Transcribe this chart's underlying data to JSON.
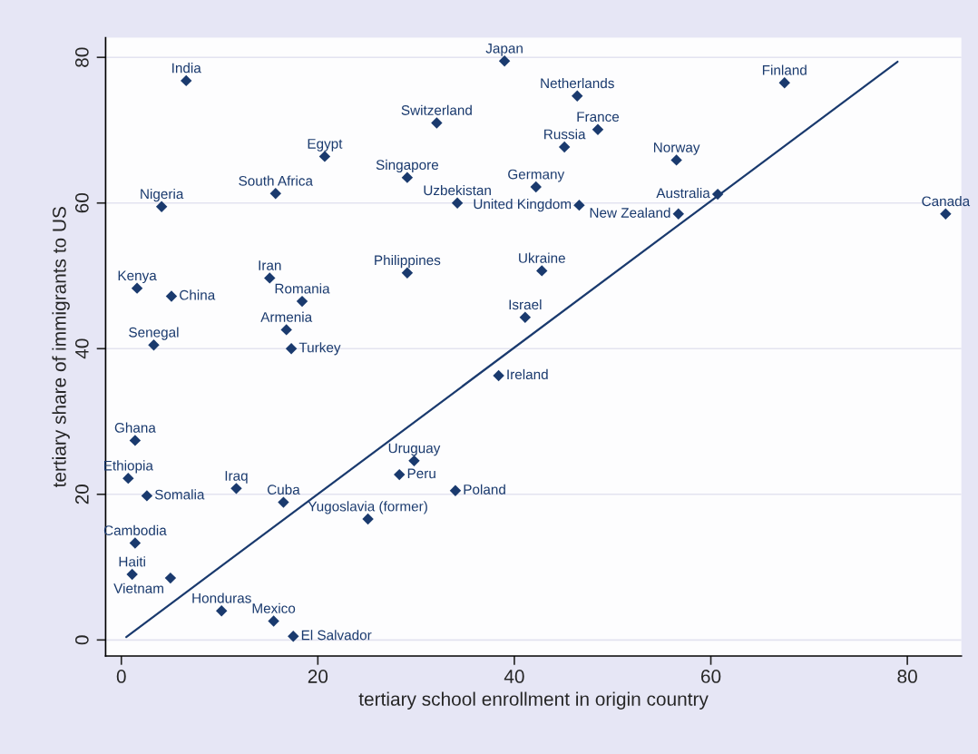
{
  "chart_data": {
    "type": "scatter",
    "xlabel": "tertiary school enrollment in origin country",
    "ylabel": "tertiary share of immigrants to US",
    "xlim": [
      -1.6,
      85.5
    ],
    "ylim": [
      -2.2,
      82.7
    ],
    "xticks": [
      0,
      20,
      40,
      60,
      80
    ],
    "yticks": [
      0,
      20,
      40,
      60,
      80
    ],
    "grid": "y",
    "marker": "diamond",
    "series": [
      {
        "color": "#1a3a6e",
        "x": [
          6.6,
          32.1,
          20.7,
          29.1,
          15.7,
          34.2,
          4.1,
          29.1,
          1.6,
          15.1,
          5.1,
          18.4,
          16.8,
          17.3,
          3.3,
          39.0,
          67.5,
          46.4,
          48.5,
          45.1,
          56.5,
          42.2,
          46.6,
          60.7,
          56.7,
          83.9,
          42.8,
          41.1,
          38.4,
          1.4,
          0.7,
          2.6,
          11.7,
          16.5,
          29.8,
          28.3,
          34.0,
          25.1,
          1.4,
          1.1,
          5.0,
          10.2,
          15.5,
          17.5
        ],
        "values": [
          76.8,
          71.0,
          66.4,
          63.5,
          61.3,
          60.0,
          59.5,
          50.4,
          48.3,
          49.7,
          47.2,
          46.5,
          42.6,
          40.0,
          40.5,
          79.5,
          76.5,
          74.7,
          70.1,
          67.7,
          65.9,
          62.2,
          59.7,
          61.2,
          58.5,
          58.5,
          50.7,
          44.3,
          36.3,
          27.4,
          22.2,
          19.8,
          20.8,
          18.9,
          24.6,
          22.7,
          20.5,
          16.6,
          13.3,
          9.0,
          8.5,
          4.0,
          2.6,
          0.5
        ]
      },
      {
        "type": "line",
        "color": "#1a3a6e",
        "marker": "none",
        "x": [
          0.5,
          79.0
        ],
        "values": [
          0.4,
          79.4
        ]
      }
    ],
    "annotations": [
      {
        "text": "India",
        "x": 6.6,
        "y": 76.8
      },
      {
        "text": "Switzerland",
        "x": 32.1,
        "y": 71.0
      },
      {
        "text": "Egypt",
        "x": 20.7,
        "y": 66.4
      },
      {
        "text": "Singapore",
        "x": 29.1,
        "y": 63.5
      },
      {
        "text": "South Africa",
        "x": 15.7,
        "y": 61.3
      },
      {
        "text": "Uzbekistan",
        "x": 34.2,
        "y": 60.0
      },
      {
        "text": "Nigeria",
        "x": 4.1,
        "y": 59.5
      },
      {
        "text": "Philippines",
        "x": 29.1,
        "y": 50.4
      },
      {
        "text": "Kenya",
        "x": 1.6,
        "y": 48.3
      },
      {
        "text": "Iran",
        "x": 15.1,
        "y": 49.7
      },
      {
        "text": "China",
        "x": 5.1,
        "y": 47.2
      },
      {
        "text": "Romania",
        "x": 18.4,
        "y": 46.5
      },
      {
        "text": "Armenia",
        "x": 16.8,
        "y": 42.6
      },
      {
        "text": "Turkey",
        "x": 17.3,
        "y": 40.0
      },
      {
        "text": "Senegal",
        "x": 3.3,
        "y": 40.5
      },
      {
        "text": "Japan",
        "x": 39.0,
        "y": 79.5
      },
      {
        "text": "Finland",
        "x": 67.5,
        "y": 76.5
      },
      {
        "text": "Netherlands",
        "x": 46.4,
        "y": 74.7
      },
      {
        "text": "France",
        "x": 48.5,
        "y": 70.1
      },
      {
        "text": "Russia",
        "x": 45.1,
        "y": 67.7
      },
      {
        "text": "Norway",
        "x": 56.5,
        "y": 65.9
      },
      {
        "text": "Germany",
        "x": 42.2,
        "y": 62.2
      },
      {
        "text": "United Kingdom",
        "x": 46.6,
        "y": 59.7
      },
      {
        "text": "Australia",
        "x": 60.7,
        "y": 61.2
      },
      {
        "text": "New Zealand",
        "x": 56.7,
        "y": 58.5
      },
      {
        "text": "Canada",
        "x": 83.9,
        "y": 58.5
      },
      {
        "text": "Ukraine",
        "x": 42.8,
        "y": 50.7
      },
      {
        "text": "Israel",
        "x": 41.1,
        "y": 44.3
      },
      {
        "text": "Ireland",
        "x": 38.4,
        "y": 36.3
      },
      {
        "text": "Ghana",
        "x": 1.4,
        "y": 27.4
      },
      {
        "text": "Ethiopia",
        "x": 0.7,
        "y": 22.2
      },
      {
        "text": "Somalia",
        "x": 2.6,
        "y": 19.8
      },
      {
        "text": "Iraq",
        "x": 11.7,
        "y": 20.8
      },
      {
        "text": "Cuba",
        "x": 16.5,
        "y": 18.9
      },
      {
        "text": "Uruguay",
        "x": 29.8,
        "y": 24.6
      },
      {
        "text": "Peru",
        "x": 28.3,
        "y": 22.7
      },
      {
        "text": "Poland",
        "x": 34.0,
        "y": 20.5
      },
      {
        "text": "Yugoslavia (former)",
        "x": 25.1,
        "y": 16.6
      },
      {
        "text": "Cambodia",
        "x": 1.4,
        "y": 13.3
      },
      {
        "text": "Haiti",
        "x": 1.1,
        "y": 9.0
      },
      {
        "text": "Vietnam",
        "x": 5.0,
        "y": 8.5
      },
      {
        "text": "Honduras",
        "x": 10.2,
        "y": 4.0
      },
      {
        "text": "Mexico",
        "x": 15.5,
        "y": 2.6
      },
      {
        "text": "El Salvador",
        "x": 17.5,
        "y": 0.5
      }
    ]
  }
}
